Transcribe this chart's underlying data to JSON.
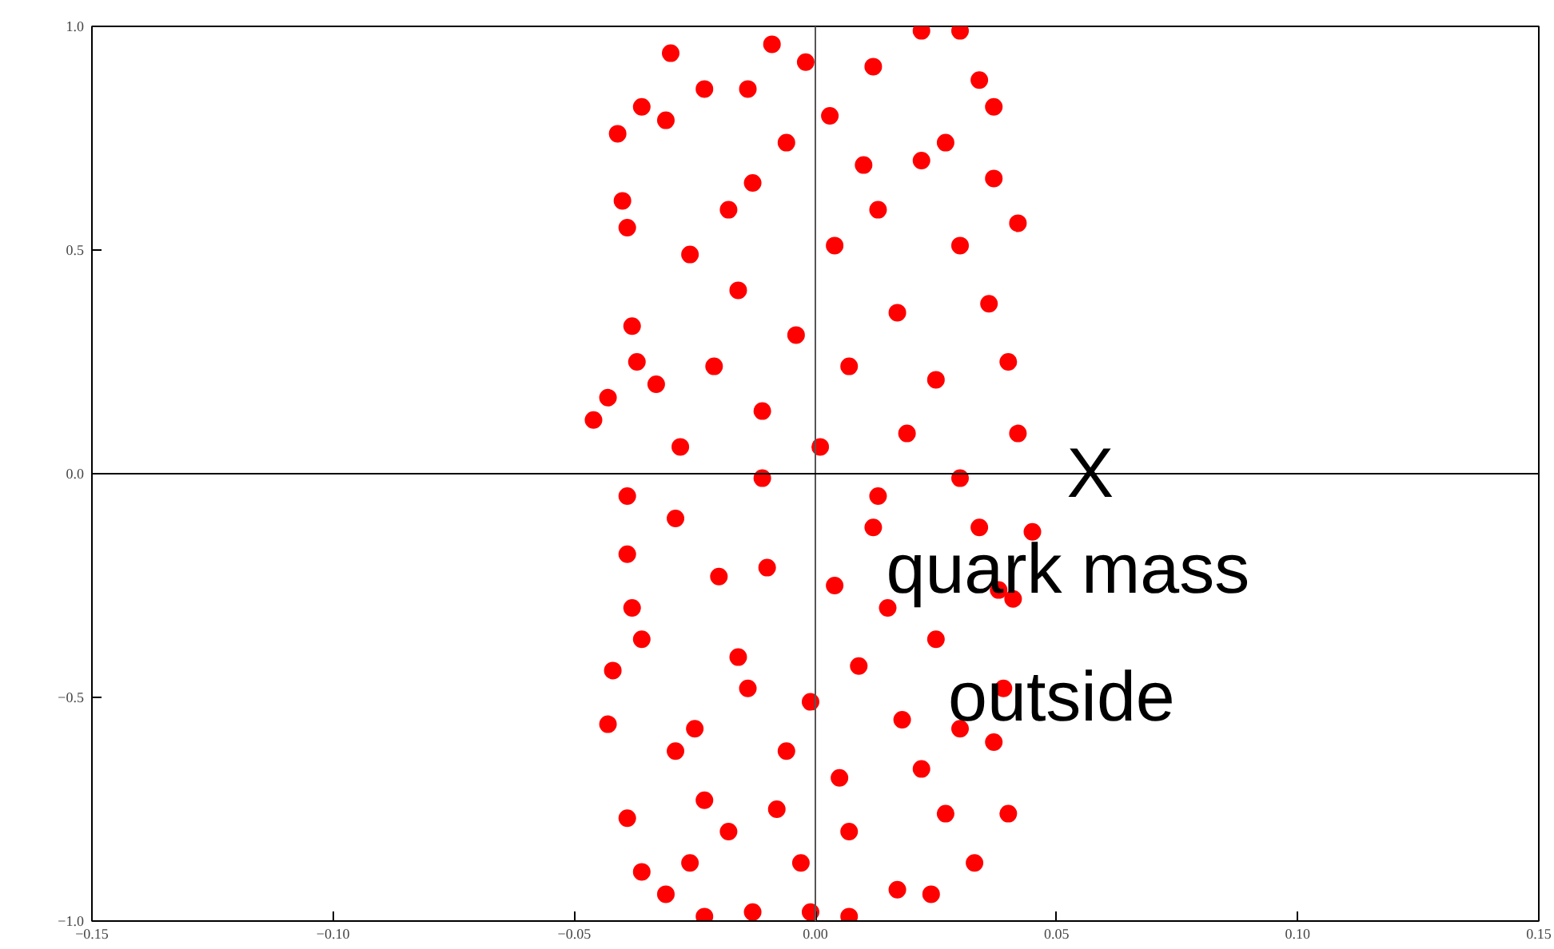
{
  "chart_data": {
    "type": "scatter",
    "color": "#ff0000",
    "marker": "circle",
    "grid": false,
    "x": [
      -0.041,
      -0.04,
      -0.046,
      -0.039,
      -0.038,
      -0.036,
      -0.03,
      -0.031,
      -0.026,
      -0.021,
      -0.018,
      -0.016,
      -0.013,
      -0.011,
      -0.006,
      -0.004,
      -0.002,
      0.003,
      0.004,
      0.007,
      0.012,
      0.013,
      0.017,
      0.022,
      0.027,
      0.03,
      0.034,
      0.037,
      0.036,
      0.042,
      0.042,
      0.04,
      0.025,
      0.019,
      0.001,
      -0.028,
      -0.033,
      -0.043,
      -0.023,
      -0.009,
      0.03,
      0.022,
      -0.037,
      0.01,
      -0.014,
      0.037,
      -0.042,
      -0.043,
      -0.039,
      -0.036,
      -0.039,
      -0.038,
      -0.029,
      -0.025,
      -0.023,
      -0.018,
      -0.016,
      -0.013,
      -0.01,
      -0.006,
      -0.003,
      -0.001,
      0.004,
      0.007,
      0.009,
      0.013,
      0.017,
      0.018,
      0.022,
      0.025,
      0.027,
      0.03,
      0.033,
      0.037,
      0.04,
      0.045,
      0.039,
      0.034,
      0.024,
      0.007,
      -0.001,
      -0.023,
      -0.031,
      -0.02,
      -0.011,
      -0.029,
      -0.014,
      0.015,
      0.012,
      0.03,
      -0.036,
      -0.026,
      -0.008,
      0.005,
      -0.039,
      0.038,
      0.041
    ],
    "values": [
      0.76,
      0.61,
      0.12,
      0.55,
      0.33,
      0.82,
      0.94,
      0.79,
      0.49,
      0.24,
      0.59,
      0.41,
      0.65,
      0.14,
      0.74,
      0.31,
      0.92,
      0.8,
      0.51,
      0.24,
      0.91,
      0.59,
      0.36,
      0.7,
      0.74,
      0.51,
      0.88,
      0.82,
      0.38,
      0.56,
      0.09,
      0.25,
      0.21,
      0.09,
      0.06,
      0.06,
      0.2,
      0.17,
      0.86,
      0.96,
      0.99,
      0.99,
      0.25,
      0.69,
      0.86,
      0.66,
      -0.44,
      -0.56,
      -0.77,
      -0.89,
      -0.18,
      -0.3,
      -0.1,
      -0.57,
      -0.73,
      -0.8,
      -0.41,
      -0.98,
      -0.21,
      -0.62,
      -0.87,
      -0.51,
      -0.25,
      -0.8,
      -0.43,
      -0.05,
      -0.93,
      -0.55,
      -0.66,
      -0.37,
      -0.76,
      -0.01,
      -0.87,
      -0.6,
      -0.76,
      -0.13,
      -0.48,
      -0.12,
      -0.94,
      -0.99,
      -0.98,
      -0.99,
      -0.94,
      -0.23,
      -0.01,
      -0.62,
      -0.48,
      -0.3,
      -0.12,
      -0.57,
      -0.37,
      -0.87,
      -0.75,
      -0.68,
      -0.05,
      -0.26,
      -0.28
    ],
    "xlim": [
      -0.15,
      0.15
    ],
    "ylim": [
      -1.0,
      1.0
    ],
    "xticks": [
      {
        "value": -0.15,
        "label": "−0.15"
      },
      {
        "value": -0.1,
        "label": "−0.10"
      },
      {
        "value": -0.05,
        "label": "−0.05"
      },
      {
        "value": 0,
        "label": "0.00"
      },
      {
        "value": 0.05,
        "label": "0.05"
      },
      {
        "value": 0.1,
        "label": "0.10"
      },
      {
        "value": 0.15,
        "label": "0.15"
      }
    ],
    "yticks": [
      {
        "value": -1,
        "label": "−1.0"
      },
      {
        "value": -0.5,
        "label": "−0.5"
      },
      {
        "value": 0,
        "label": "0.0"
      },
      {
        "value": 0.5,
        "label": "0.5"
      },
      {
        "value": 1,
        "label": "1.0"
      }
    ],
    "ref_lines": [
      {
        "axis": "x",
        "value": 0,
        "color": "#555555"
      },
      {
        "axis": "y",
        "value": 0,
        "color": "#000000"
      }
    ],
    "annotations": [
      {
        "text": "X",
        "x": 0.057,
        "y": 0.0
      },
      "quark mass",
      "outside"
    ]
  }
}
